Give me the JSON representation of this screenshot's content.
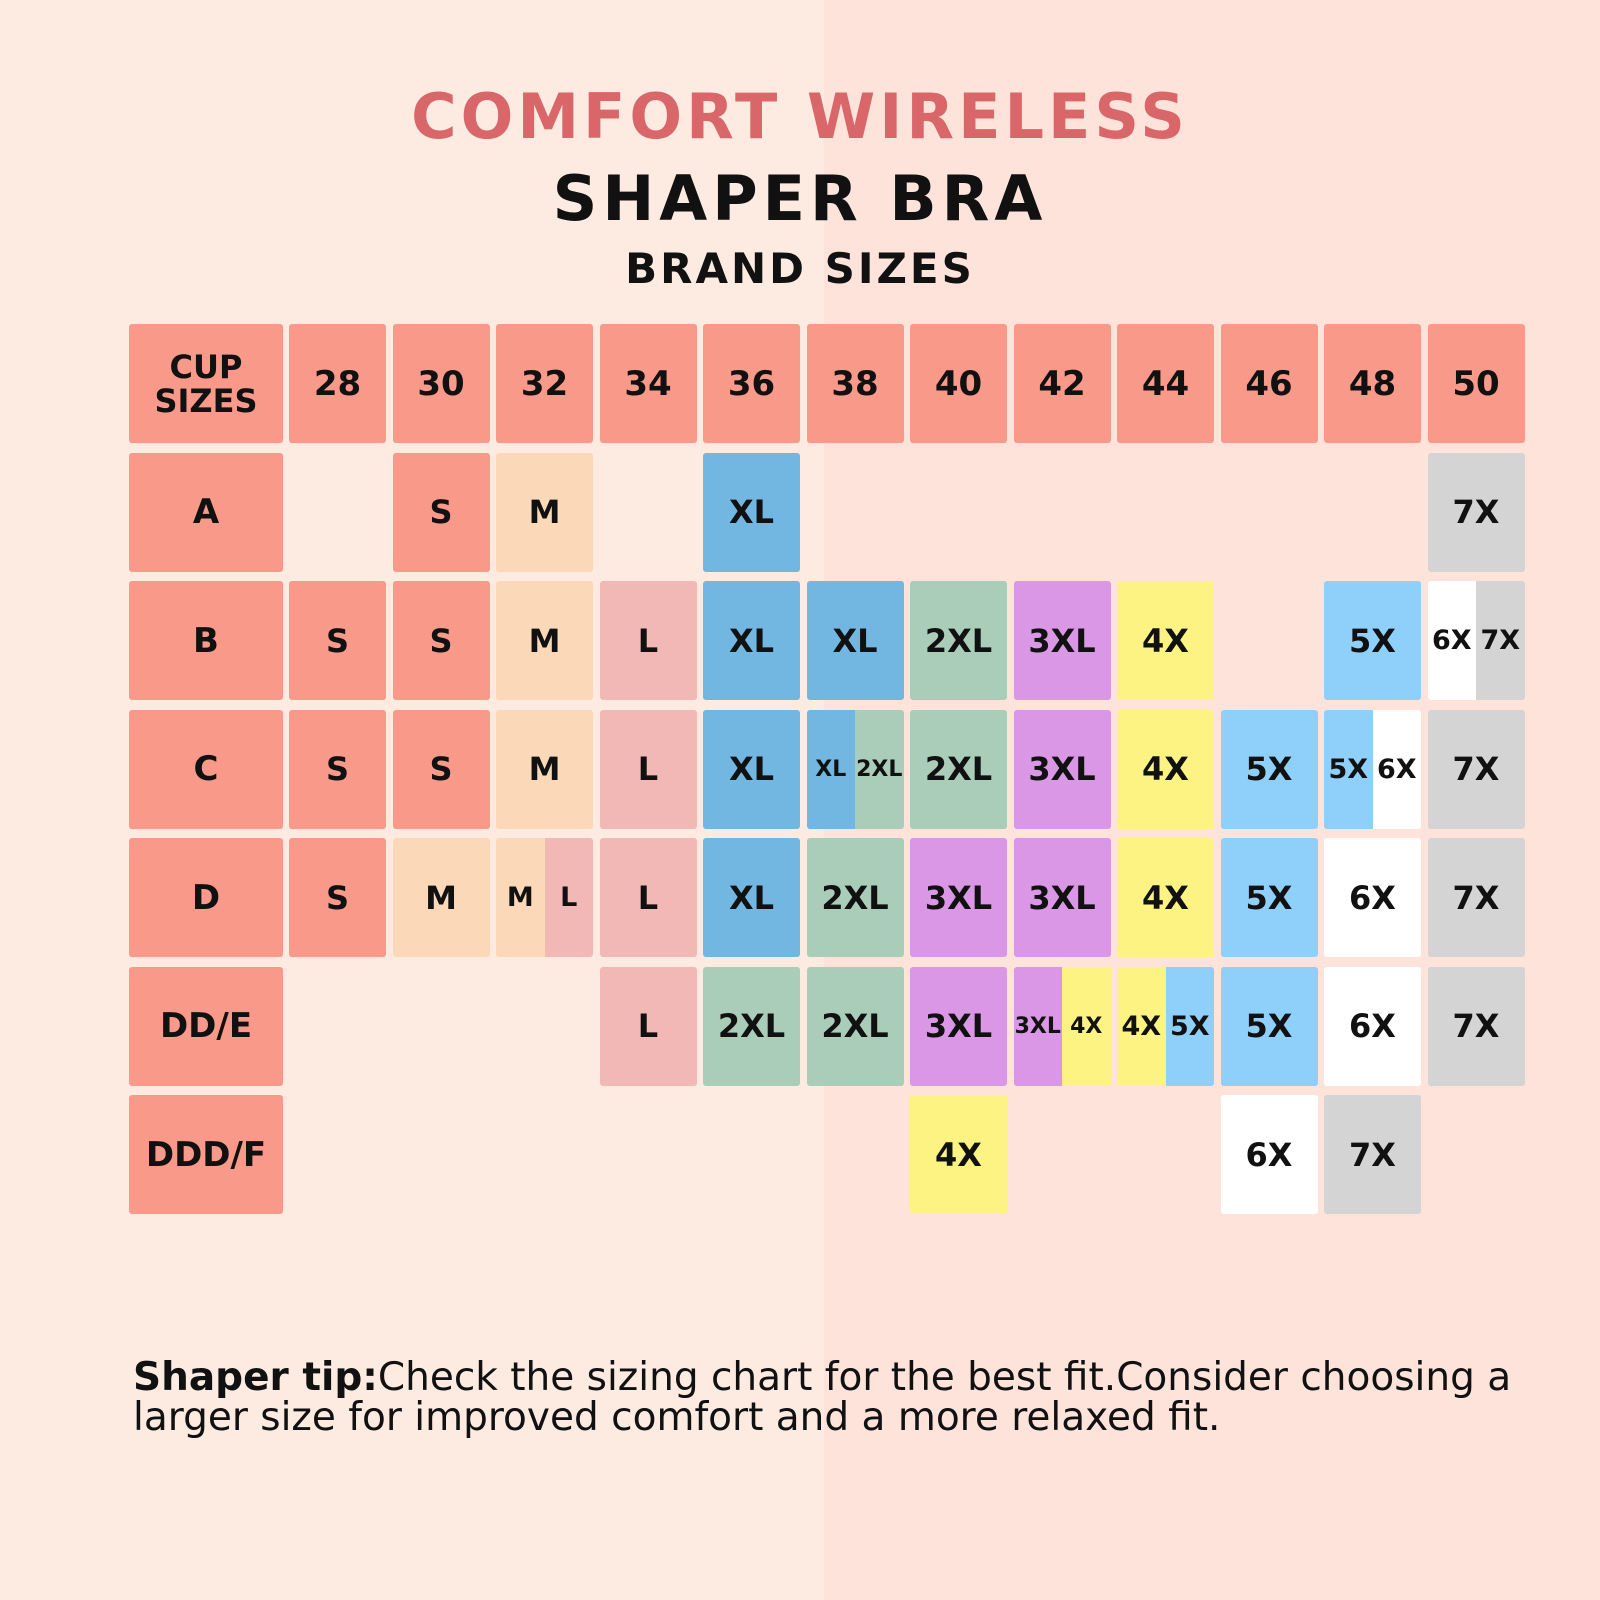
{
  "title": {
    "line1": "COMFORT WIRELESS",
    "line2": "SHAPER BRA",
    "line3": "BRAND SIZES"
  },
  "colors": {
    "title_accent": "#d9676a",
    "header": "#f8998a",
    "S": "#f8998a",
    "M": "#fbd9b8",
    "L": "#f1b8b6",
    "XL": "#72b7e2",
    "2XL": "#a9cdb9",
    "3XL": "#da97e6",
    "4X": "#fcf383",
    "5X": "#8fd0fb",
    "6X": "#ffffff",
    "7X": "#d4d4d4"
  },
  "table": {
    "corner_label": "CUP\nSIZES",
    "band_sizes": [
      "28",
      "30",
      "32",
      "34",
      "36",
      "38",
      "40",
      "42",
      "44",
      "46",
      "48",
      "50"
    ],
    "rows": [
      {
        "cup": "A",
        "cells": [
          [],
          [
            "S"
          ],
          [
            "M"
          ],
          [],
          [
            "XL"
          ],
          [],
          [],
          [],
          [],
          [],
          [],
          [
            "7X"
          ]
        ]
      },
      {
        "cup": "B",
        "cells": [
          [
            "S"
          ],
          [
            "S"
          ],
          [
            "M"
          ],
          [
            "L"
          ],
          [
            "XL"
          ],
          [
            "XL"
          ],
          [
            "2XL"
          ],
          [
            "3XL"
          ],
          [
            "4X"
          ],
          [],
          [
            "5X"
          ],
          [
            "6X",
            "7X"
          ]
        ]
      },
      {
        "cup": "C",
        "cells": [
          [
            "S"
          ],
          [
            "S"
          ],
          [
            "M"
          ],
          [
            "L"
          ],
          [
            "XL"
          ],
          [
            "XL",
            "2XL"
          ],
          [
            "2XL"
          ],
          [
            "3XL"
          ],
          [
            "4X"
          ],
          [
            "5X"
          ],
          [
            "5X",
            "6X"
          ],
          [
            "7X"
          ]
        ]
      },
      {
        "cup": "D",
        "cells": [
          [
            "S"
          ],
          [
            "M"
          ],
          [
            "M",
            "L"
          ],
          [
            "L"
          ],
          [
            "XL"
          ],
          [
            "2XL"
          ],
          [
            "3XL"
          ],
          [
            "3XL"
          ],
          [
            "4X"
          ],
          [
            "5X"
          ],
          [
            "6X"
          ],
          [
            "7X"
          ]
        ]
      },
      {
        "cup": "DD/E",
        "cells": [
          [],
          [],
          [],
          [
            "L"
          ],
          [
            "2XL"
          ],
          [
            "2XL"
          ],
          [
            "3XL"
          ],
          [
            "3XL",
            "4X"
          ],
          [
            "4X",
            "5X"
          ],
          [
            "5X"
          ],
          [
            "6X"
          ],
          [
            "7X"
          ]
        ]
      },
      {
        "cup": "DDD/F",
        "cells": [
          [],
          [],
          [],
          [],
          [],
          [],
          [
            "4X"
          ],
          [],
          [],
          [
            "6X"
          ],
          [
            "7X"
          ],
          []
        ]
      }
    ]
  },
  "tip": {
    "label": "Shaper tip:",
    "text": "Check the sizing chart for the best fit.Consider choosing a larger size for improved comfort and a more relaxed fit."
  }
}
